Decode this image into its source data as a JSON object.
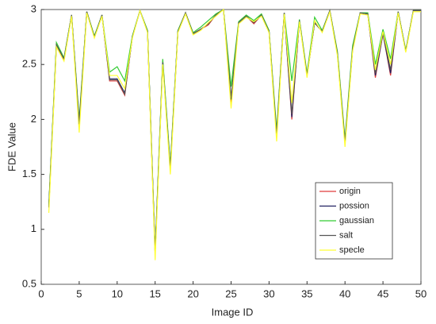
{
  "chart_data": {
    "type": "line",
    "xlabel": "Image ID",
    "ylabel": "FDE Value",
    "x": [
      1,
      2,
      3,
      4,
      5,
      6,
      7,
      8,
      9,
      10,
      11,
      12,
      13,
      14,
      15,
      16,
      17,
      18,
      19,
      20,
      21,
      22,
      23,
      24,
      25,
      26,
      27,
      28,
      29,
      30,
      31,
      32,
      33,
      34,
      35,
      36,
      37,
      38,
      39,
      40,
      41,
      42,
      43,
      44,
      45,
      46,
      47,
      48,
      49,
      50
    ],
    "xlim": [
      0,
      50
    ],
    "xticks": [
      0,
      5,
      10,
      15,
      20,
      25,
      30,
      35,
      40,
      45,
      50
    ],
    "ylim": [
      0.5,
      3
    ],
    "yticks": [
      0.5,
      1,
      1.5,
      2,
      2.5,
      3
    ],
    "legend": "lower right",
    "series": [
      {
        "name": "origin",
        "color": "#e03c3c",
        "values": [
          1.2,
          2.67,
          2.54,
          2.95,
          1.95,
          2.98,
          2.75,
          2.95,
          2.35,
          2.35,
          2.22,
          2.75,
          2.99,
          2.8,
          0.78,
          2.52,
          1.55,
          2.8,
          2.97,
          2.78,
          2.82,
          2.86,
          2.95,
          3.0,
          2.15,
          2.88,
          2.94,
          2.87,
          2.95,
          2.8,
          1.85,
          2.97,
          2.0,
          2.9,
          2.4,
          2.88,
          2.8,
          2.99,
          2.6,
          1.78,
          2.63,
          2.97,
          2.96,
          2.38,
          2.78,
          2.4,
          2.98,
          2.62,
          2.99,
          2.99
        ]
      },
      {
        "name": "possion",
        "color": "#202060",
        "values": [
          1.2,
          2.68,
          2.55,
          2.95,
          1.96,
          2.98,
          2.75,
          2.95,
          2.37,
          2.37,
          2.24,
          2.75,
          2.99,
          2.8,
          0.78,
          2.53,
          1.56,
          2.8,
          2.97,
          2.78,
          2.82,
          2.87,
          2.95,
          3.0,
          2.18,
          2.88,
          2.94,
          2.88,
          2.95,
          2.8,
          1.86,
          2.97,
          2.02,
          2.9,
          2.4,
          2.88,
          2.8,
          2.99,
          2.6,
          1.79,
          2.64,
          2.97,
          2.96,
          2.4,
          2.78,
          2.42,
          2.98,
          2.62,
          2.99,
          2.99
        ]
      },
      {
        "name": "gaussian",
        "color": "#33cc33",
        "values": [
          1.22,
          2.7,
          2.56,
          2.95,
          2.0,
          2.98,
          2.76,
          2.95,
          2.43,
          2.48,
          2.35,
          2.76,
          2.99,
          2.81,
          0.8,
          2.55,
          1.58,
          2.81,
          2.97,
          2.79,
          2.84,
          2.9,
          2.96,
          3.0,
          2.3,
          2.89,
          2.95,
          2.9,
          2.96,
          2.81,
          1.9,
          2.97,
          2.35,
          2.91,
          2.42,
          2.93,
          2.81,
          2.99,
          2.62,
          1.82,
          2.67,
          2.97,
          2.97,
          2.5,
          2.82,
          2.55,
          2.98,
          2.63,
          2.99,
          2.99
        ]
      },
      {
        "name": "salt",
        "color": "#555555",
        "values": [
          1.2,
          2.68,
          2.55,
          2.95,
          1.97,
          2.98,
          2.75,
          2.95,
          2.36,
          2.36,
          2.23,
          2.75,
          2.99,
          2.8,
          0.78,
          2.52,
          1.55,
          2.8,
          2.97,
          2.78,
          2.82,
          2.87,
          2.95,
          3.0,
          2.2,
          2.88,
          2.94,
          2.88,
          2.95,
          2.8,
          1.86,
          2.97,
          2.05,
          2.9,
          2.4,
          2.88,
          2.8,
          2.99,
          2.6,
          1.79,
          2.64,
          2.97,
          2.96,
          2.42,
          2.79,
          2.45,
          2.98,
          2.62,
          2.99,
          2.99
        ]
      },
      {
        "name": "specle",
        "color": "#ffff33",
        "values": [
          1.15,
          2.66,
          2.53,
          2.94,
          1.88,
          2.97,
          2.74,
          2.94,
          2.4,
          2.4,
          2.28,
          2.74,
          2.99,
          2.79,
          0.72,
          2.5,
          1.5,
          2.79,
          2.96,
          2.77,
          2.81,
          2.88,
          2.94,
          3.0,
          2.1,
          2.87,
          2.93,
          2.89,
          2.94,
          2.79,
          1.8,
          2.96,
          2.15,
          2.89,
          2.38,
          2.9,
          2.79,
          2.98,
          2.58,
          1.75,
          2.62,
          2.96,
          2.95,
          2.45,
          2.8,
          2.5,
          2.97,
          2.61,
          2.98,
          2.98
        ]
      }
    ]
  }
}
